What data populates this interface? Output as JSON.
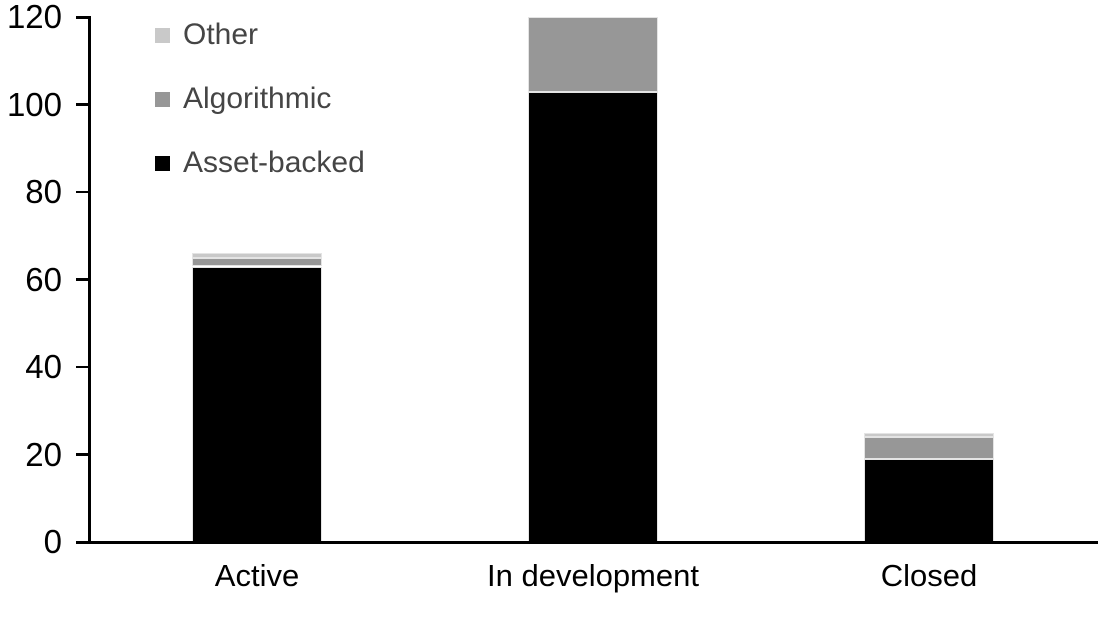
{
  "chart_data": {
    "type": "bar",
    "stacked": true,
    "title": "",
    "xlabel": "",
    "ylabel": "",
    "categories": [
      "Active",
      "In development",
      "Closed"
    ],
    "series": [
      {
        "name": "Asset-backed",
        "color": "#000000",
        "values": [
          63,
          103,
          19
        ]
      },
      {
        "name": "Algorithmic",
        "color": "#979797",
        "values": [
          2,
          17,
          5
        ]
      },
      {
        "name": "Other",
        "color": "#c9c9c9",
        "values": [
          1,
          0,
          1
        ]
      }
    ],
    "ylim": [
      0,
      120
    ],
    "yticks": [
      0,
      20,
      40,
      60,
      80,
      100,
      120
    ],
    "grid": false,
    "legend_position": "top-left",
    "legend_order": [
      "Other",
      "Algorithmic",
      "Asset-backed"
    ],
    "colors": {
      "axis": "#000000",
      "tick_label_text": "#000000",
      "category_label_text": "#000000",
      "legend_text": "#454545",
      "segment_border": "#e4e4e4",
      "background": "#ffffff"
    }
  }
}
